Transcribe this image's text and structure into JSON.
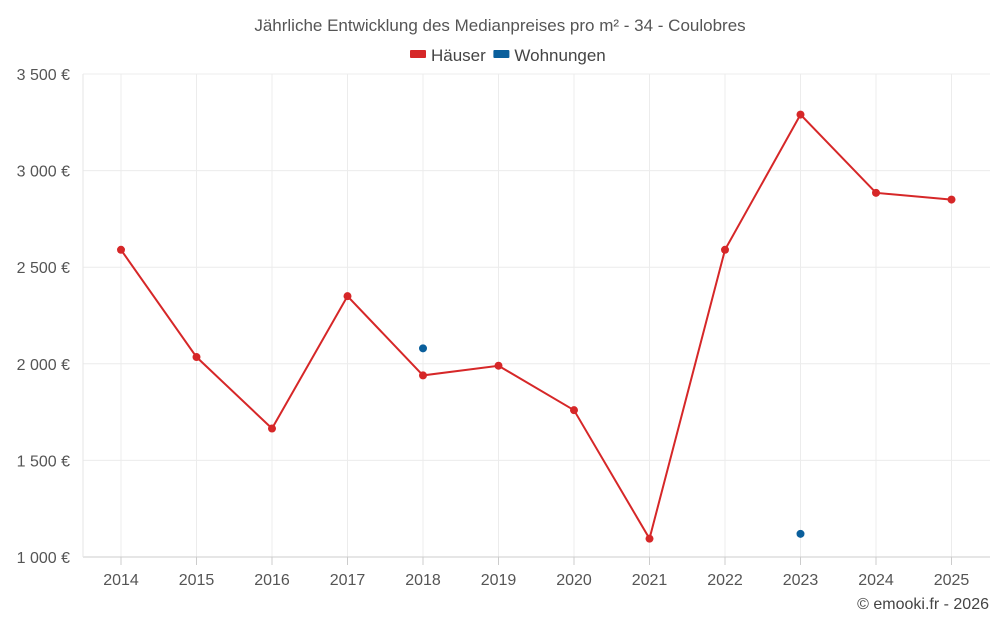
{
  "chart_data": {
    "type": "line",
    "title": "Jährliche Entwicklung des Medianpreises pro m² - 34 - Coulobres",
    "categories": [
      "2014",
      "2015",
      "2016",
      "2017",
      "2018",
      "2019",
      "2020",
      "2021",
      "2022",
      "2023",
      "2024",
      "2025"
    ],
    "series": [
      {
        "name": "Häuser",
        "color": "#d62728",
        "values": [
          2590,
          2035,
          1665,
          2350,
          1940,
          1990,
          1760,
          1095,
          2590,
          3290,
          2885,
          2850
        ]
      },
      {
        "name": "Wohnungen",
        "color": "#0a5f9c",
        "values": [
          null,
          null,
          null,
          null,
          2080,
          null,
          null,
          null,
          null,
          1120,
          null,
          null
        ]
      }
    ],
    "ylim": [
      1000,
      3500
    ],
    "yticks": [
      1000,
      1500,
      2000,
      2500,
      3000,
      3500
    ],
    "ytick_labels": [
      "1 000 €",
      "1 500 €",
      "2 000 €",
      "2 500 €",
      "3 000 €",
      "3 500 €"
    ],
    "xlabel": "",
    "ylabel": "",
    "grid": true,
    "legend_position": "top-center"
  },
  "credit": "© emooki.fr - 2026"
}
